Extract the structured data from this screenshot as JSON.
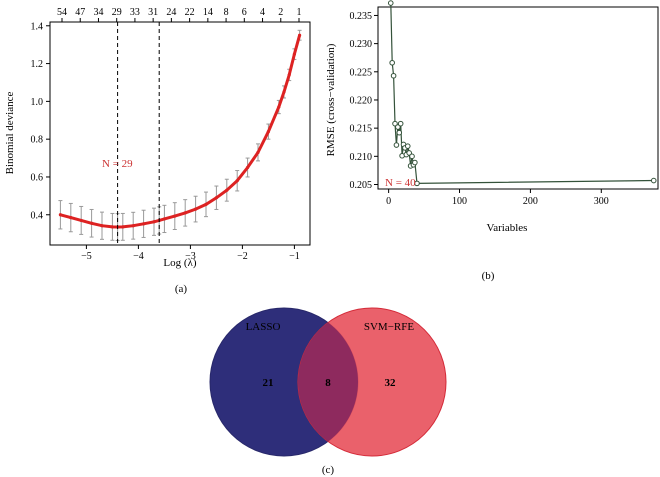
{
  "chart_data": [
    {
      "type": "line",
      "panel_label": "(a)",
      "xlabel": "Log (λ)",
      "ylabel": "Binomial deviance",
      "xlim": [
        -5.7,
        -0.7
      ],
      "ylim": [
        0.24,
        1.42
      ],
      "x_ticks": [
        -5,
        -4,
        -3,
        -2,
        -1
      ],
      "x_tick_labels": [
        "−5",
        "−4",
        "−3",
        "−2",
        "−1"
      ],
      "y_ticks": [
        0.4,
        0.6,
        0.8,
        1.0,
        1.2,
        1.4
      ],
      "y_tick_labels": [
        "0.4",
        "0.6",
        "0.8",
        "1.0",
        "1.2",
        "1.4"
      ],
      "top_axis_labels": [
        "54",
        "47",
        "34",
        "29",
        "33",
        "31",
        "24",
        "22",
        "14",
        "8",
        "6",
        "4",
        "2",
        "1"
      ],
      "annotation": "N = 29",
      "vlines": [
        -4.4,
        -3.6
      ],
      "series": [
        {
          "name": "cv-deviance",
          "x": [
            -5.5,
            -5.3,
            -5.1,
            -4.9,
            -4.7,
            -4.5,
            -4.4,
            -4.3,
            -4.1,
            -3.9,
            -3.7,
            -3.6,
            -3.5,
            -3.3,
            -3.1,
            -2.9,
            -2.7,
            -2.5,
            -2.3,
            -2.1,
            -1.9,
            -1.7,
            -1.5,
            -1.3,
            -1.2,
            -1.1,
            -1.0,
            -0.9
          ],
          "y": [
            0.4,
            0.385,
            0.37,
            0.355,
            0.342,
            0.336,
            0.335,
            0.336,
            0.342,
            0.352,
            0.363,
            0.37,
            0.378,
            0.393,
            0.41,
            0.43,
            0.455,
            0.49,
            0.53,
            0.58,
            0.65,
            0.73,
            0.84,
            0.97,
            1.05,
            1.14,
            1.25,
            1.35
          ],
          "err": [
            0.075,
            0.075,
            0.074,
            0.073,
            0.072,
            0.071,
            0.071,
            0.071,
            0.071,
            0.072,
            0.072,
            0.072,
            0.072,
            0.071,
            0.07,
            0.068,
            0.065,
            0.062,
            0.058,
            0.054,
            0.05,
            0.045,
            0.04,
            0.035,
            0.032,
            0.03,
            0.028,
            0.026
          ]
        }
      ]
    },
    {
      "type": "line",
      "panel_label": "(b)",
      "xlabel": "Variables",
      "ylabel": "RMSE (cross−validation)",
      "xlim": [
        -15,
        380
      ],
      "ylim": [
        0.2042,
        0.2365
      ],
      "x_ticks": [
        0,
        100,
        200,
        300
      ],
      "x_tick_labels": [
        "0",
        "100",
        "200",
        "300"
      ],
      "y_ticks": [
        0.205,
        0.21,
        0.215,
        0.22,
        0.225,
        0.23,
        0.235
      ],
      "y_tick_labels": [
        "0.205",
        "0.210",
        "0.215",
        "0.220",
        "0.225",
        "0.230",
        "0.235"
      ],
      "annotation": "N = 40",
      "series": [
        {
          "name": "rmse",
          "x": [
            3,
            5,
            7,
            9,
            11,
            13,
            15,
            17,
            19,
            21,
            23,
            25,
            27,
            29,
            31,
            33,
            35,
            37,
            40,
            374
          ],
          "y": [
            0.2372,
            0.2266,
            0.2243,
            0.2158,
            0.212,
            0.2152,
            0.2142,
            0.2158,
            0.2101,
            0.2121,
            0.2115,
            0.2103,
            0.2118,
            0.2106,
            0.2083,
            0.21,
            0.2085,
            0.2089,
            0.2052,
            0.2057
          ]
        }
      ]
    },
    {
      "type": "venn",
      "panel_label": "(c)",
      "sets": [
        {
          "name": "LASSO",
          "only": "21",
          "color": "#2e2e7a"
        },
        {
          "name": "SVM−RFE",
          "only": "32",
          "color": "#e8505b"
        }
      ],
      "intersection": "8"
    }
  ],
  "colors": {
    "lasso_line": "#dd2222",
    "error_bar": "#999999",
    "rfe_line": "#34523a",
    "annotation": "#cc3333"
  }
}
